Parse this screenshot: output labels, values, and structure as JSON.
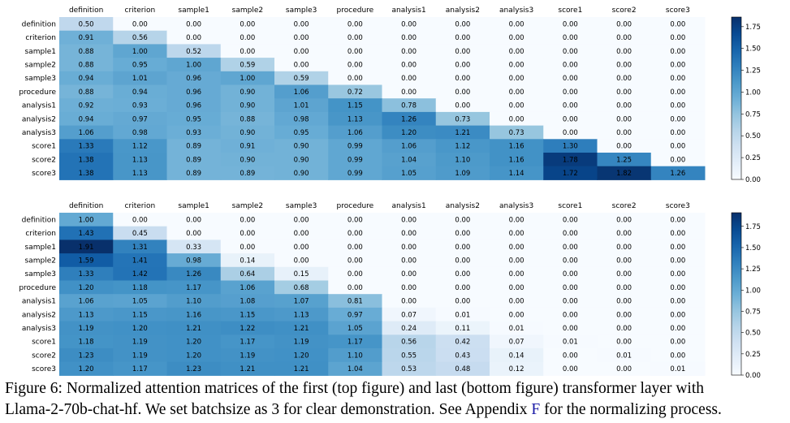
{
  "chart_data": [
    {
      "type": "heatmap",
      "panel": "top",
      "x_categories": [
        "definition",
        "criterion",
        "sample1",
        "sample2",
        "sample3",
        "procedure",
        "analysis1",
        "analysis2",
        "analysis3",
        "score1",
        "score2",
        "score3"
      ],
      "y_categories": [
        "definition",
        "criterion",
        "sample1",
        "sample2",
        "sample3",
        "procedure",
        "analysis1",
        "analysis2",
        "analysis3",
        "score1",
        "score2",
        "score3"
      ],
      "values": [
        [
          "0.50",
          "0.00",
          "0.00",
          "0.00",
          "0.00",
          "0.00",
          "0.00",
          "0.00",
          "0.00",
          "0.00",
          "0.00",
          "0.00"
        ],
        [
          "0.91",
          "0.56",
          "0.00",
          "0.00",
          "0.00",
          "0.00",
          "0.00",
          "0.00",
          "0.00",
          "0.00",
          "0.00",
          "0.00"
        ],
        [
          "0.88",
          "1.00",
          "0.52",
          "0.00",
          "0.00",
          "0.00",
          "0.00",
          "0.00",
          "0.00",
          "0.00",
          "0.00",
          "0.00"
        ],
        [
          "0.88",
          "0.95",
          "1.00",
          "0.59",
          "0.00",
          "0.00",
          "0.00",
          "0.00",
          "0.00",
          "0.00",
          "0.00",
          "0.00"
        ],
        [
          "0.94",
          "1.01",
          "0.96",
          "1.00",
          "0.59",
          "0.00",
          "0.00",
          "0.00",
          "0.00",
          "0.00",
          "0.00",
          "0.00"
        ],
        [
          "0.88",
          "0.94",
          "0.96",
          "0.90",
          "1.06",
          "0.72",
          "0.00",
          "0.00",
          "0.00",
          "0.00",
          "0.00",
          "0.00"
        ],
        [
          "0.92",
          "0.93",
          "0.96",
          "0.90",
          "1.01",
          "1.15",
          "0.78",
          "0.00",
          "0.00",
          "0.00",
          "0.00",
          "0.00"
        ],
        [
          "0.94",
          "0.97",
          "0.95",
          "0.88",
          "0.98",
          "1.13",
          "1.26",
          "0.73",
          "0.00",
          "0.00",
          "0.00",
          "0.00"
        ],
        [
          "1.06",
          "0.98",
          "0.93",
          "0.90",
          "0.95",
          "1.06",
          "1.20",
          "1.21",
          "0.73",
          "0.00",
          "0.00",
          "0.00"
        ],
        [
          "1.33",
          "1.12",
          "0.89",
          "0.91",
          "0.90",
          "0.99",
          "1.06",
          "1.12",
          "1.16",
          "1.30",
          "0.00",
          "0.00"
        ],
        [
          "1.38",
          "1.13",
          "0.89",
          "0.90",
          "0.90",
          "0.99",
          "1.04",
          "1.10",
          "1.16",
          "1.78",
          "1.25",
          "0.00"
        ],
        [
          "1.38",
          "1.13",
          "0.89",
          "0.89",
          "0.90",
          "0.99",
          "1.05",
          "1.09",
          "1.14",
          "1.72",
          "1.82",
          "1.26"
        ]
      ],
      "colorbar": {
        "min": 0,
        "max": 1.86,
        "ticks": [
          "0.00",
          "0.25",
          "0.50",
          "0.75",
          "1.00",
          "1.25",
          "1.50",
          "1.75"
        ]
      }
    },
    {
      "type": "heatmap",
      "panel": "bottom",
      "x_categories": [
        "definition",
        "criterion",
        "sample1",
        "sample2",
        "sample3",
        "procedure",
        "analysis1",
        "analysis2",
        "analysis3",
        "score1",
        "score2",
        "score3"
      ],
      "y_categories": [
        "definition",
        "criterion",
        "sample1",
        "sample2",
        "sample3",
        "procedure",
        "analysis1",
        "analysis2",
        "analysis3",
        "score1",
        "score2",
        "score3"
      ],
      "values": [
        [
          "1.00",
          "0.00",
          "0.00",
          "0.00",
          "0.00",
          "0.00",
          "0.00",
          "0.00",
          "0.00",
          "0.00",
          "0.00",
          "0.00"
        ],
        [
          "1.43",
          "0.45",
          "0.00",
          "0.00",
          "0.00",
          "0.00",
          "0.00",
          "0.00",
          "0.00",
          "0.00",
          "0.00",
          "0.00"
        ],
        [
          "1.91",
          "1.31",
          "0.33",
          "0.00",
          "0.00",
          "0.00",
          "0.00",
          "0.00",
          "0.00",
          "0.00",
          "0.00",
          "0.00"
        ],
        [
          "1.59",
          "1.41",
          "0.98",
          "0.14",
          "0.00",
          "0.00",
          "0.00",
          "0.00",
          "0.00",
          "0.00",
          "0.00",
          "0.00"
        ],
        [
          "1.33",
          "1.42",
          "1.26",
          "0.64",
          "0.15",
          "0.00",
          "0.00",
          "0.00",
          "0.00",
          "0.00",
          "0.00",
          "0.00"
        ],
        [
          "1.20",
          "1.18",
          "1.17",
          "1.06",
          "0.68",
          "0.00",
          "0.00",
          "0.00",
          "0.00",
          "0.00",
          "0.00",
          "0.00"
        ],
        [
          "1.06",
          "1.05",
          "1.10",
          "1.08",
          "1.07",
          "0.81",
          "0.00",
          "0.00",
          "0.00",
          "0.00",
          "0.00",
          "0.00"
        ],
        [
          "1.13",
          "1.15",
          "1.16",
          "1.15",
          "1.13",
          "0.97",
          "0.07",
          "0.01",
          "0.00",
          "0.00",
          "0.00",
          "0.00"
        ],
        [
          "1.19",
          "1.20",
          "1.21",
          "1.22",
          "1.21",
          "1.05",
          "0.24",
          "0.11",
          "0.01",
          "0.00",
          "0.00",
          "0.00"
        ],
        [
          "1.18",
          "1.19",
          "1.20",
          "1.17",
          "1.19",
          "1.17",
          "0.56",
          "0.42",
          "0.07",
          "0.01",
          "0.00",
          "0.00"
        ],
        [
          "1.23",
          "1.19",
          "1.20",
          "1.19",
          "1.20",
          "1.10",
          "0.55",
          "0.43",
          "0.14",
          "0.00",
          "0.01",
          "0.00"
        ],
        [
          "1.20",
          "1.17",
          "1.23",
          "1.21",
          "1.21",
          "1.04",
          "0.53",
          "0.48",
          "0.12",
          "0.00",
          "0.00",
          "0.01"
        ]
      ],
      "colorbar": {
        "min": 0,
        "max": 1.91,
        "ticks": [
          "0.00",
          "0.25",
          "0.50",
          "0.75",
          "1.00",
          "1.25",
          "1.50",
          "1.75"
        ]
      }
    }
  ],
  "caption": {
    "line1": "Figure 6: Normalized attention matrices of the first (top figure) and last (bottom figure) transformer layer with",
    "line2_before": "Llama-2-70b-chat-hf. We set batchsize as 3 for clear demonstration. See Appendix ",
    "line2_ref": "F",
    "line2_after": " for the normalizing process."
  },
  "colormap": [
    "#f7fbff",
    "#deebf7",
    "#c6dbef",
    "#9ecae1",
    "#6baed6",
    "#4292c6",
    "#2171b5",
    "#08519c",
    "#08306b"
  ]
}
